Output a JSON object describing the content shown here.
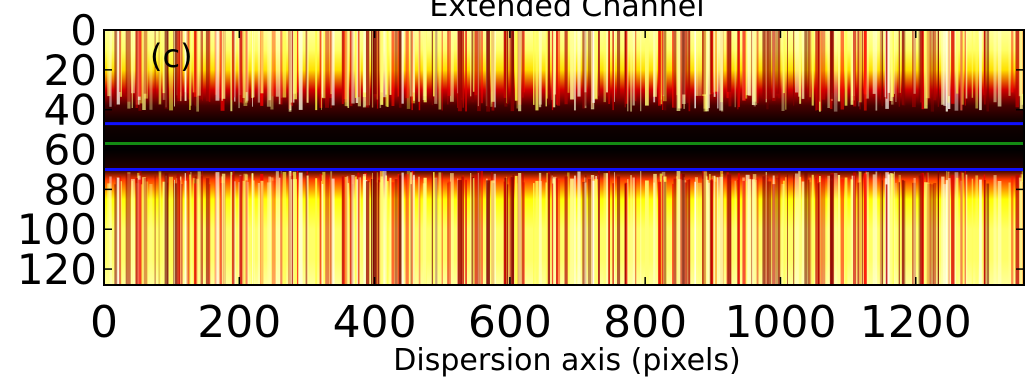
{
  "chart_data": {
    "type": "heatmap",
    "title": "Extended Channel",
    "panel_label": "(c)",
    "xlabel": "Dispersion axis (pixels)",
    "ylabel": "",
    "xlim": [
      0,
      1360
    ],
    "ylim": [
      0,
      128
    ],
    "y_inverted": true,
    "x_ticks": [
      0,
      200,
      400,
      600,
      800,
      1000,
      1200
    ],
    "x_tick_labels": [
      "0",
      "200",
      "400",
      "600",
      "800",
      "1000",
      "1200"
    ],
    "y_ticks": [
      0,
      20,
      40,
      60,
      80,
      100,
      120
    ],
    "y_tick_labels": [
      "0",
      "20",
      "40",
      "60",
      "80",
      "100",
      "120"
    ],
    "colormap": "hot",
    "intensity_profile": {
      "rows": [
        0,
        10,
        20,
        30,
        38,
        45,
        60,
        70,
        75,
        85,
        100,
        115,
        128
      ],
      "intensity": [
        0.9,
        0.85,
        0.7,
        0.3,
        0.1,
        0.03,
        0.0,
        0.05,
        0.45,
        0.75,
        0.85,
        0.85,
        0.9
      ]
    },
    "lines": [
      {
        "y": 47,
        "color": "#1010ff"
      },
      {
        "y": 57,
        "color": "#138a13"
      },
      {
        "y": 70,
        "color": "#1010ff"
      }
    ],
    "grid": false
  }
}
